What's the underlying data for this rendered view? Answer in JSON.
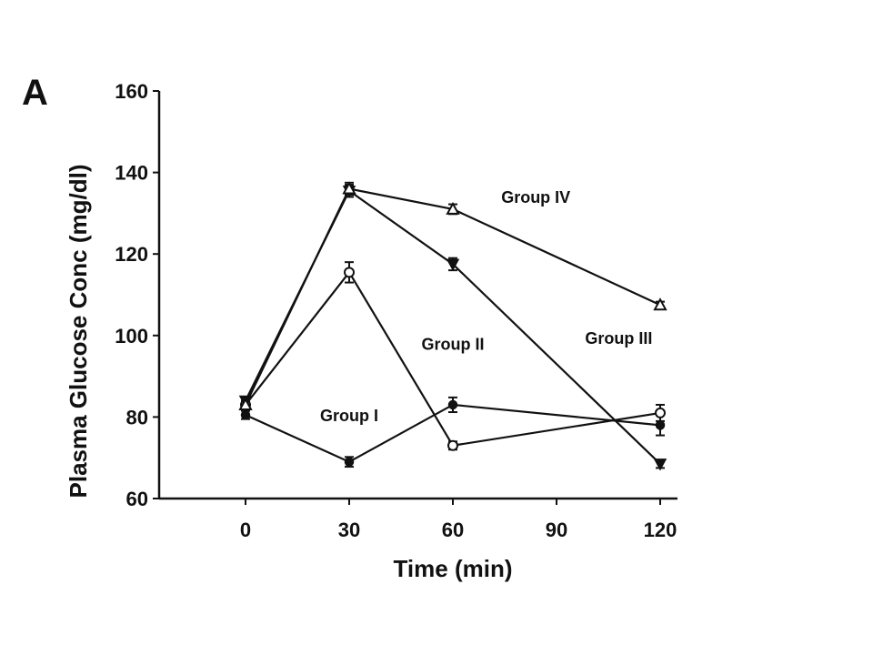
{
  "panel_letter": "A",
  "chart_data": {
    "type": "line",
    "title": "",
    "xlabel": "Time (min)",
    "ylabel": "Plasma Glucose Conc (mg/dl)",
    "x": [
      0,
      30,
      60,
      120
    ],
    "xticks": [
      0,
      30,
      60,
      90,
      120
    ],
    "yticks": [
      60,
      80,
      100,
      120,
      140,
      160
    ],
    "xlim": [
      -25,
      125
    ],
    "ylim": [
      60,
      160
    ],
    "grid": false,
    "series": [
      {
        "name": "Group I",
        "marker": "filled-circle",
        "values": [
          80.5,
          69,
          83,
          78
        ],
        "errors": [
          1,
          1.2,
          1.8,
          2.5
        ],
        "label_at": [
          30,
          79
        ]
      },
      {
        "name": "Group II",
        "marker": "open-circle",
        "values": [
          83,
          115.5,
          73,
          81
        ],
        "errors": [
          1,
          2.5,
          1,
          2
        ],
        "label_at": [
          60,
          96.5
        ]
      },
      {
        "name": "Group III",
        "marker": "filled-triangle-down",
        "values": [
          84,
          135.5,
          117.5,
          68.5
        ],
        "errors": [
          1,
          1.5,
          1.5,
          1
        ],
        "label_at": [
          108,
          98
        ]
      },
      {
        "name": "Group IV",
        "marker": "open-triangle-up",
        "values": [
          83,
          136,
          131,
          107.5
        ],
        "errors": [
          1,
          1.5,
          1.2,
          0.8
        ],
        "label_at": [
          84,
          132.5
        ]
      }
    ]
  }
}
